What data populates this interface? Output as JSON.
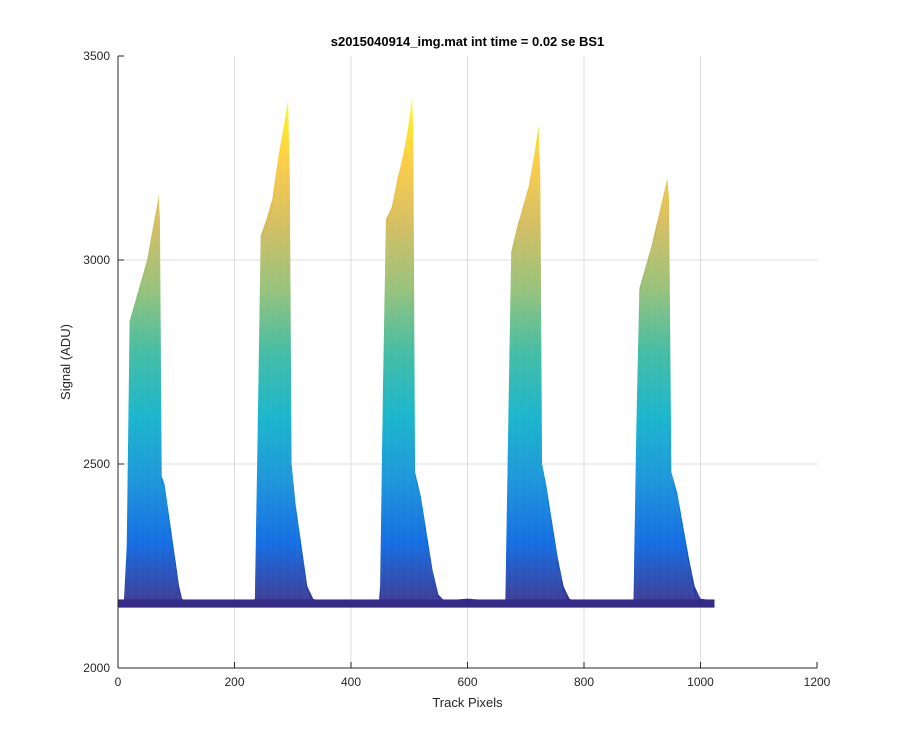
{
  "chart_data": {
    "type": "area",
    "title": "s2015040914_img.mat int time = 0.02 se   BS1",
    "xlabel": "Track Pixels",
    "ylabel": "Signal (ADU)",
    "xlim": [
      0,
      1200
    ],
    "ylim": [
      2000,
      3500
    ],
    "xticks": [
      0,
      200,
      400,
      600,
      800,
      1000,
      1200
    ],
    "yticks": [
      2000,
      2500,
      3000,
      3500
    ],
    "grid": true,
    "legend": "none",
    "colormap": "parula",
    "colors": [
      "#352a87",
      "#0363e1",
      "#0d8fd8",
      "#0ab1c9",
      "#37b89d",
      "#91be72",
      "#d2ba58",
      "#fcca3a",
      "#f9fb0e"
    ],
    "series": [
      {
        "points": [
          [
            0,
            2155
          ],
          [
            10,
            2160
          ],
          [
            15,
            2300
          ],
          [
            20,
            2850
          ],
          [
            30,
            2900
          ],
          [
            40,
            2950
          ],
          [
            50,
            3000
          ],
          [
            60,
            3080
          ],
          [
            68,
            3140
          ],
          [
            70,
            3160
          ],
          [
            72,
            3100
          ],
          [
            75,
            2470
          ],
          [
            80,
            2450
          ],
          [
            85,
            2400
          ],
          [
            90,
            2350
          ],
          [
            95,
            2300
          ],
          [
            100,
            2250
          ],
          [
            105,
            2200
          ],
          [
            110,
            2170
          ],
          [
            115,
            2162
          ],
          [
            150,
            2160
          ],
          [
            200,
            2158
          ],
          [
            230,
            2160
          ],
          [
            235,
            2170
          ],
          [
            240,
            2600
          ],
          [
            245,
            3060
          ],
          [
            255,
            3100
          ],
          [
            265,
            3150
          ],
          [
            275,
            3250
          ],
          [
            285,
            3330
          ],
          [
            292,
            3390
          ],
          [
            295,
            3200
          ],
          [
            298,
            2500
          ],
          [
            305,
            2400
          ],
          [
            315,
            2300
          ],
          [
            325,
            2200
          ],
          [
            335,
            2170
          ],
          [
            345,
            2162
          ],
          [
            380,
            2165
          ],
          [
            420,
            2168
          ],
          [
            448,
            2165
          ],
          [
            450,
            2200
          ],
          [
            455,
            2700
          ],
          [
            460,
            3100
          ],
          [
            470,
            3130
          ],
          [
            480,
            3200
          ],
          [
            490,
            3260
          ],
          [
            500,
            3340
          ],
          [
            505,
            3400
          ],
          [
            507,
            3300
          ],
          [
            510,
            2480
          ],
          [
            520,
            2420
          ],
          [
            530,
            2330
          ],
          [
            540,
            2240
          ],
          [
            550,
            2180
          ],
          [
            560,
            2165
          ],
          [
            600,
            2170
          ],
          [
            640,
            2165
          ],
          [
            665,
            2168
          ],
          [
            670,
            2600
          ],
          [
            675,
            3020
          ],
          [
            685,
            3080
          ],
          [
            695,
            3130
          ],
          [
            705,
            3180
          ],
          [
            715,
            3260
          ],
          [
            722,
            3330
          ],
          [
            725,
            3200
          ],
          [
            728,
            2500
          ],
          [
            735,
            2450
          ],
          [
            745,
            2360
          ],
          [
            755,
            2270
          ],
          [
            765,
            2200
          ],
          [
            775,
            2170
          ],
          [
            785,
            2162
          ],
          [
            820,
            2160
          ],
          [
            860,
            2162
          ],
          [
            885,
            2165
          ],
          [
            890,
            2600
          ],
          [
            895,
            2930
          ],
          [
            905,
            2980
          ],
          [
            915,
            3030
          ],
          [
            925,
            3090
          ],
          [
            935,
            3150
          ],
          [
            943,
            3200
          ],
          [
            946,
            3150
          ],
          [
            950,
            2480
          ],
          [
            960,
            2430
          ],
          [
            970,
            2350
          ],
          [
            980,
            2270
          ],
          [
            990,
            2200
          ],
          [
            1000,
            2170
          ],
          [
            1010,
            2168
          ],
          [
            1024,
            2165
          ]
        ]
      }
    ]
  }
}
